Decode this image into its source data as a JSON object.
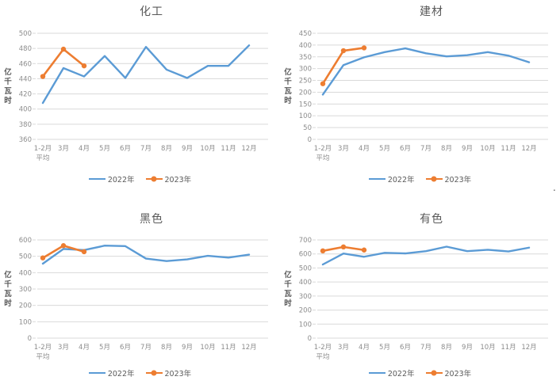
{
  "colors": {
    "blue": "#5B9BD5",
    "orange": "#ED7D31",
    "grid": "#D9D9D9",
    "title_text": "#595959",
    "axis_text": "#8C8C8C",
    "axis_title_text": "#595959",
    "legend_text": "#595959"
  },
  "stray_mark": ".",
  "chart_data": [
    {
      "type": "line",
      "title": "化工",
      "ylabel": "亿千瓦时",
      "xlabel": "",
      "grid": true,
      "legend_position": "bottom",
      "categories": [
        "1-2月",
        "3月",
        "4月",
        "5月",
        "6月",
        "7月",
        "8月",
        "9月",
        "10月",
        "11月",
        "12月"
      ],
      "first_category_line2": "平均",
      "ylim": [
        360,
        500
      ],
      "ytick_step": 20,
      "series": [
        {
          "name": "2022年",
          "color": "#5B9BD5",
          "marker": false,
          "values": [
            408,
            454,
            443,
            470,
            441,
            482,
            452,
            441,
            457,
            457,
            484
          ]
        },
        {
          "name": "2023年",
          "color": "#ED7D31",
          "marker": true,
          "values": [
            443,
            479,
            457
          ]
        }
      ]
    },
    {
      "type": "line",
      "title": "建材",
      "ylabel": "亿千瓦时",
      "xlabel": "",
      "grid": true,
      "legend_position": "bottom",
      "categories": [
        "1-2月",
        "3月",
        "4月",
        "5月",
        "6月",
        "7月",
        "8月",
        "9月",
        "10月",
        "11月",
        "12月"
      ],
      "first_category_line2": "平均",
      "ylim": [
        0,
        450
      ],
      "ytick_step": 50,
      "series": [
        {
          "name": "2022年",
          "color": "#5B9BD5",
          "marker": false,
          "values": [
            190,
            315,
            348,
            370,
            386,
            365,
            352,
            357,
            370,
            355,
            327
          ]
        },
        {
          "name": "2023年",
          "color": "#ED7D31",
          "marker": true,
          "values": [
            236,
            376,
            388
          ]
        }
      ]
    },
    {
      "type": "line",
      "title": "黑色",
      "ylabel": "亿千瓦时",
      "xlabel": "",
      "grid": true,
      "legend_position": "bottom",
      "categories": [
        "1-2月",
        "3月",
        "4月",
        "5月",
        "6月",
        "7月",
        "8月",
        "9月",
        "10月",
        "11月",
        "12月"
      ],
      "first_category_line2": "平均",
      "ylim": [
        0,
        600
      ],
      "ytick_step": 100,
      "series": [
        {
          "name": "2022年",
          "color": "#5B9BD5",
          "marker": false,
          "values": [
            455,
            545,
            538,
            565,
            562,
            486,
            471,
            481,
            503,
            492,
            510
          ]
        },
        {
          "name": "2023年",
          "color": "#ED7D31",
          "marker": true,
          "values": [
            490,
            565,
            528
          ]
        }
      ]
    },
    {
      "type": "line",
      "title": "有色",
      "ylabel": "亿千瓦时",
      "xlabel": "",
      "grid": true,
      "legend_position": "bottom",
      "categories": [
        "1-2月",
        "3月",
        "4月",
        "5月",
        "6月",
        "7月",
        "8月",
        "9月",
        "10月",
        "11月",
        "12月"
      ],
      "first_category_line2": "平均",
      "ylim": [
        0,
        700
      ],
      "ytick_step": 100,
      "series": [
        {
          "name": "2022年",
          "color": "#5B9BD5",
          "marker": false,
          "values": [
            525,
            603,
            580,
            608,
            604,
            620,
            652,
            620,
            630,
            618,
            645
          ]
        },
        {
          "name": "2023年",
          "color": "#ED7D31",
          "marker": true,
          "values": [
            622,
            650,
            628
          ]
        }
      ]
    }
  ]
}
